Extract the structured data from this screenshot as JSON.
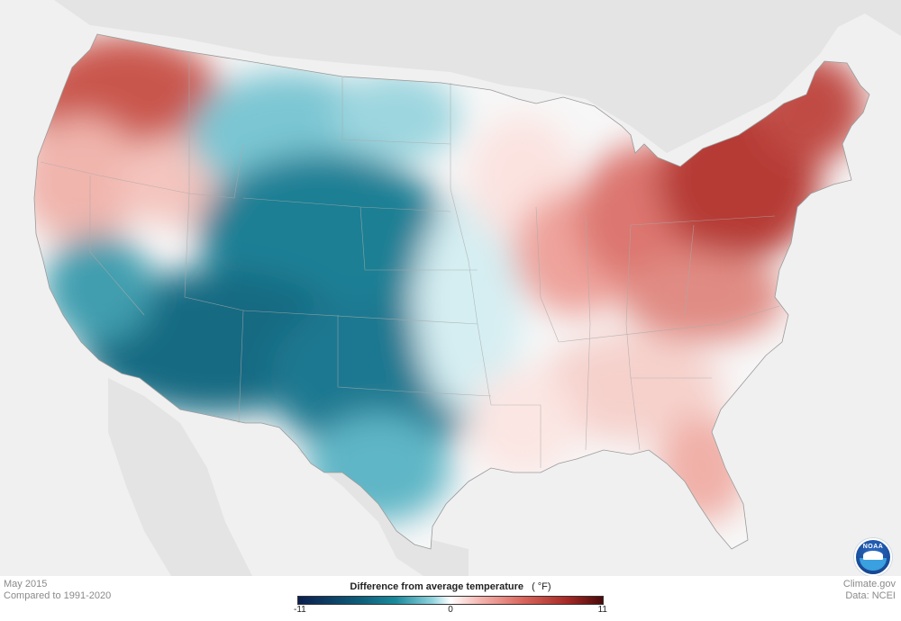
{
  "map": {
    "period": "May 2015",
    "baseline": "Compared to 1991-2020",
    "legend": {
      "title": "Difference from average temperature",
      "unit": "( °F)",
      "min_label": "-11",
      "mid_label": "0",
      "max_label": "11",
      "min_value": -11,
      "max_value": 11,
      "colors": {
        "cold_extreme": "#0b1f4f",
        "cold": "#1a8a9c",
        "neutral": "#ffffff",
        "warm": "#d9655c",
        "warm_extreme": "#4a0a0a"
      }
    },
    "credit": "Climate.gov",
    "data_source": "Data: NCEI",
    "logo": "noaa-logo-icon"
  }
}
